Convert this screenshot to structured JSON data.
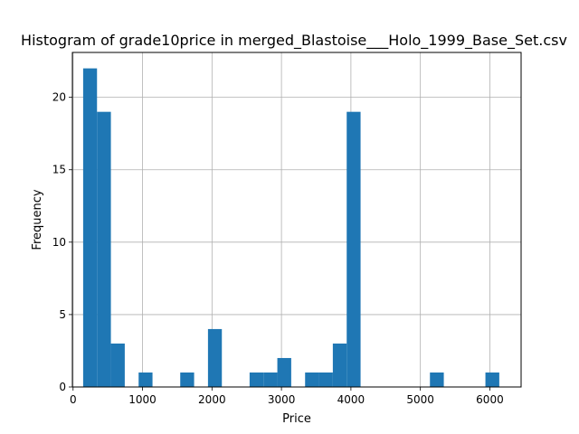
{
  "chart_data": {
    "type": "bar",
    "title": "Histogram of grade10price in merged_Blastoise___Holo_1999_Base_Set.csv",
    "xlabel": "Price",
    "ylabel": "Frequency",
    "xlim": [
      -10,
      6450
    ],
    "ylim": [
      0,
      23.1
    ],
    "grid": true,
    "bar_color": "#1f77b4",
    "bins": {
      "x_start": 145,
      "bin_width": 199.7,
      "values": [
        22,
        19,
        3,
        0,
        1,
        0,
        0,
        1,
        0,
        4,
        0,
        0,
        1,
        1,
        2,
        0,
        1,
        1,
        3,
        19,
        0,
        0,
        0,
        0,
        0,
        1,
        0,
        0,
        0,
        1
      ]
    },
    "x_ticks": [
      {
        "value": 0,
        "label": "0"
      },
      {
        "value": 1000,
        "label": "1000"
      },
      {
        "value": 2000,
        "label": "2000"
      },
      {
        "value": 3000,
        "label": "3000"
      },
      {
        "value": 4000,
        "label": "4000"
      },
      {
        "value": 5000,
        "label": "5000"
      },
      {
        "value": 6000,
        "label": "6000"
      }
    ],
    "y_ticks": [
      {
        "value": 0,
        "label": "0"
      },
      {
        "value": 5,
        "label": "5"
      },
      {
        "value": 10,
        "label": "10"
      },
      {
        "value": 15,
        "label": "15"
      },
      {
        "value": 20,
        "label": "20"
      }
    ]
  }
}
